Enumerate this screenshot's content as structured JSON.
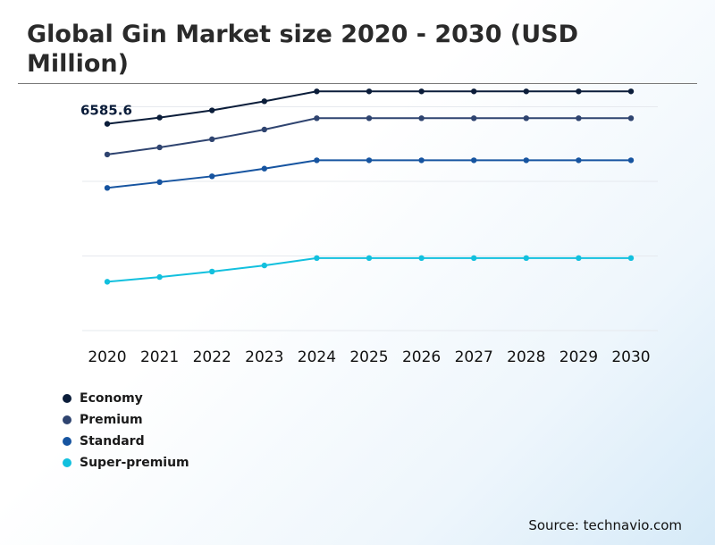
{
  "title": "Global Gin Market size 2020 - 2030 (USD Million)",
  "source": "Source: technavio.com",
  "chart_data": {
    "type": "line",
    "title": "Global Gin Market size 2020 - 2030 (USD Million)",
    "categories": [
      "2020",
      "2021",
      "2022",
      "2023",
      "2024",
      "2025",
      "2026",
      "2027",
      "2028",
      "2029",
      "2030"
    ],
    "ylim": [
      0,
      7400
    ],
    "grid": true,
    "legend": "bottom-left",
    "annotations": [
      {
        "series": "Economy",
        "category": "2020",
        "text": "6585.6"
      }
    ],
    "series": [
      {
        "name": "Economy",
        "color": "#0b1d3a",
        "values": [
          6585.6,
          6785,
          7015,
          7305,
          7620,
          7620,
          7620,
          7620,
          7620,
          7620,
          7620
        ]
      },
      {
        "name": "Premium",
        "color": "#2f4470",
        "values": [
          5610,
          5835,
          6095,
          6405,
          6765,
          6765,
          6765,
          6765,
          6765,
          6765,
          6765
        ]
      },
      {
        "name": "Standard",
        "color": "#1654a0",
        "values": [
          4545,
          4730,
          4915,
          5160,
          5425,
          5425,
          5425,
          5425,
          5425,
          5425,
          5425
        ]
      },
      {
        "name": "Super-premium",
        "color": "#12c0de",
        "values": [
          1555,
          1705,
          1880,
          2075,
          2310,
          2310,
          2310,
          2310,
          2310,
          2310,
          2310
        ]
      }
    ]
  }
}
